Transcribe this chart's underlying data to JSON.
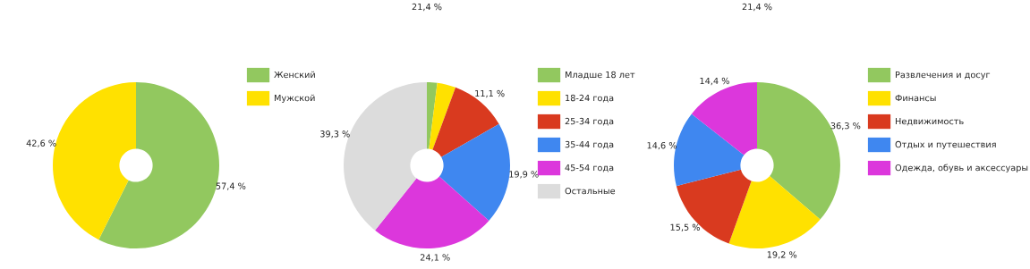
{
  "chart_data": [
    {
      "type": "donut",
      "categories": [
        "Женский",
        "Мужской"
      ],
      "values": [
        57.4,
        42.6
      ],
      "colors": [
        "#92c85f",
        "#ffe100"
      ],
      "legend": "right",
      "value_labels": [
        "57,4 %",
        "42,6 %"
      ]
    },
    {
      "type": "donut",
      "categories": [
        "Младше 18 лет",
        "18-24 года",
        "25-34 года",
        "35-44 года",
        "45-54 года",
        "Остальные"
      ],
      "values": [
        2.0,
        3.6,
        11.1,
        19.9,
        24.1,
        39.3
      ],
      "colors": [
        "#92c85f",
        "#ffe100",
        "#d93a1f",
        "#3f87f0",
        "#dc37dc",
        "#dcdcdc"
      ],
      "legend": "right",
      "value_labels": [
        null,
        null,
        "11,1 %",
        "19,9 %",
        "24,1 %",
        "39,3 %"
      ],
      "annotations": [
        "21,4 %"
      ]
    },
    {
      "type": "donut",
      "categories": [
        "Развлечения и досуг",
        "Финансы",
        "Недвижимость",
        "Отдых и путешествия",
        "Одежда, обувь и аксессуары"
      ],
      "values": [
        36.3,
        19.2,
        15.5,
        14.6,
        14.4
      ],
      "colors": [
        "#92c85f",
        "#ffe100",
        "#d93a1f",
        "#3f87f0",
        "#dc37dc"
      ],
      "legend": "right",
      "value_labels": [
        "36,3 %",
        "19,2 %",
        "15,5 %",
        "14,6 %",
        "14,4 %"
      ],
      "annotations": [
        "21,4 %"
      ]
    }
  ]
}
